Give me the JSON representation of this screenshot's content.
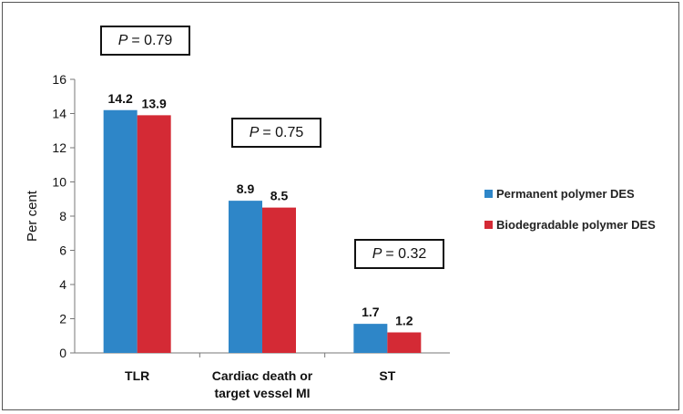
{
  "chart_data": {
    "type": "bar",
    "categories": [
      "TLR",
      "Cardiac death or target vessel MI",
      "ST"
    ],
    "category_lines": [
      [
        "TLR"
      ],
      [
        "Cardiac death or",
        "target vessel MI"
      ],
      [
        "ST"
      ]
    ],
    "series": [
      {
        "name": "Permanent polymer DES",
        "values": [
          14.2,
          8.9,
          1.7
        ],
        "labels": [
          "14.2",
          "8.9",
          "1.7"
        ],
        "color": "#2E86C8"
      },
      {
        "name": "Biodegradable polymer DES",
        "values": [
          13.9,
          8.5,
          1.2
        ],
        "labels": [
          "13.9",
          "8.5",
          "1.2"
        ],
        "color": "#D42A35"
      }
    ],
    "ylabel": "Per cent",
    "ylim": [
      0,
      16
    ],
    "yticks": [
      0,
      2,
      4,
      6,
      8,
      10,
      12,
      14,
      16
    ],
    "legend_position": "right",
    "annotations": [
      {
        "prefix": "P",
        "text": "= 0.79"
      },
      {
        "prefix": "P",
        "text": "= 0.75"
      },
      {
        "prefix": "P",
        "text": "= 0.32"
      }
    ]
  }
}
